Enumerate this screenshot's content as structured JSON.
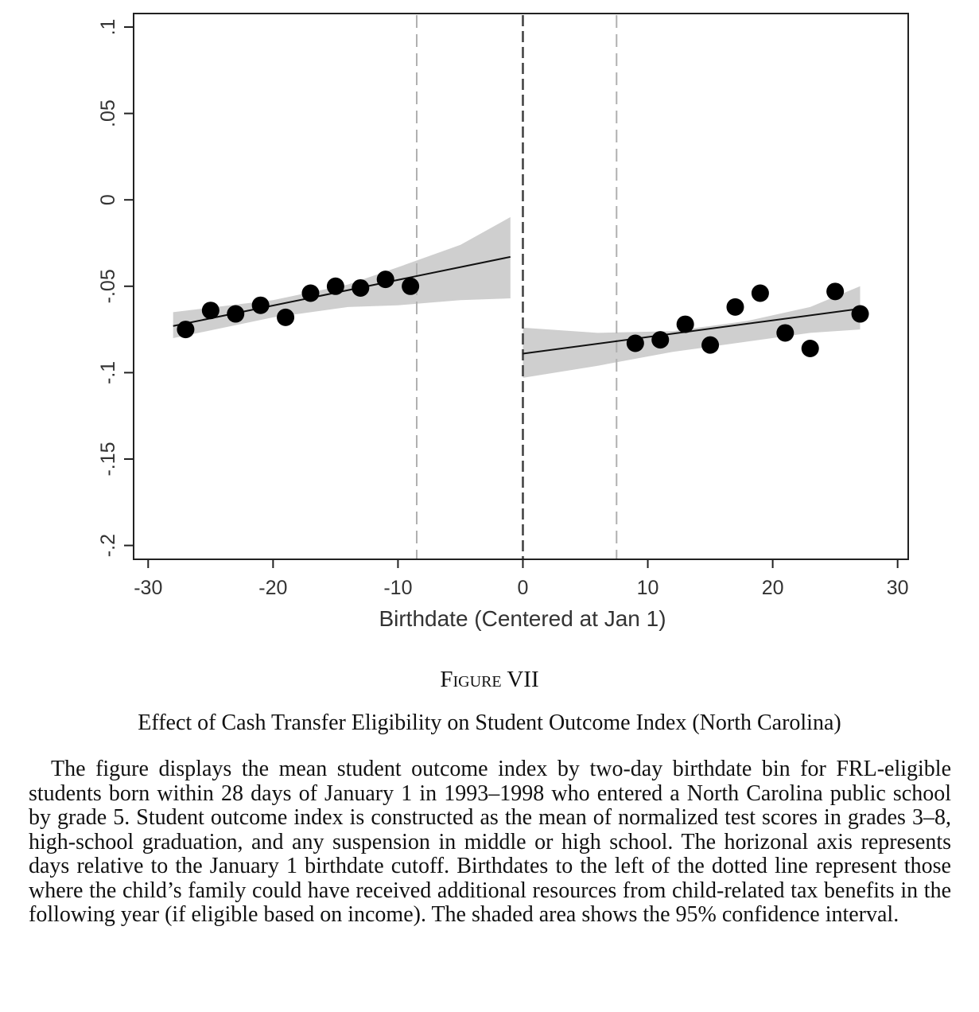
{
  "figure": {
    "label": "Figure VII",
    "title": "Effect of Cash Transfer Eligibility on Student Outcome Index (North Carolina)",
    "caption": "The figure displays the mean student outcome index by two-day birthdate bin for FRL-eligible students born within 28 days of January 1 in 1993–1998 who entered a North Carolina public school by grade 5. Student outcome index is constructed as the mean of normalized test scores in grades 3–8, high-school graduation, and any suspension in middle or high school. The horizonal axis represents days relative to the January 1 birthdate cutoff. Birthdates to the left of the dotted line represent those where the child’s family could have received additional resources from child-related tax benefits in the following year (if eligible based on income). The shaded area shows the 95% confidence interval."
  },
  "chart_data": {
    "type": "scatter",
    "title": "",
    "xlabel": "Birthdate (Centered at Jan 1)",
    "ylabel": "",
    "xlim": [
      -31,
      31
    ],
    "ylim": [
      -0.205,
      0.105
    ],
    "x_ticks": [
      -30,
      -20,
      -10,
      0,
      10,
      20,
      30
    ],
    "x_tick_labels": [
      "-30",
      "-20",
      "-10",
      "0",
      "10",
      "20",
      "30"
    ],
    "y_ticks": [
      0.1,
      0.05,
      0,
      -0.05,
      -0.1,
      -0.15,
      -0.2
    ],
    "y_tick_labels": [
      ".1",
      ".05",
      "0",
      "-.05",
      "-.1",
      "-.15",
      "-.2"
    ],
    "grid": false,
    "vertical_lines": [
      {
        "x": -8.5,
        "style": "dashed",
        "color": "#b0b0b0"
      },
      {
        "x": 0,
        "style": "dashed",
        "color": "#444444"
      },
      {
        "x": 7.5,
        "style": "dashed",
        "color": "#b0b0b0"
      }
    ],
    "series": [
      {
        "side": "left",
        "points": [
          {
            "x": -27,
            "y": -0.075
          },
          {
            "x": -25,
            "y": -0.064
          },
          {
            "x": -23,
            "y": -0.066
          },
          {
            "x": -21,
            "y": -0.061
          },
          {
            "x": -19,
            "y": -0.068
          },
          {
            "x": -17,
            "y": -0.054
          },
          {
            "x": -15,
            "y": -0.05
          },
          {
            "x": -13,
            "y": -0.051
          },
          {
            "x": -11,
            "y": -0.046
          },
          {
            "x": -9,
            "y": -0.05
          }
        ],
        "fit": {
          "x": [
            -28,
            -1
          ],
          "y": [
            -0.073,
            -0.033
          ]
        },
        "ci_upper": [
          [
            -28,
            -0.065
          ],
          [
            -20,
            -0.058
          ],
          [
            -14,
            -0.049
          ],
          [
            -10,
            -0.039
          ],
          [
            -5,
            -0.026
          ],
          [
            -1,
            -0.01
          ]
        ],
        "ci_lower": [
          [
            -28,
            -0.08
          ],
          [
            -20,
            -0.068
          ],
          [
            -14,
            -0.062
          ],
          [
            -10,
            -0.061
          ],
          [
            -5,
            -0.058
          ],
          [
            -1,
            -0.057
          ]
        ]
      },
      {
        "side": "right",
        "points": [
          {
            "x": 9,
            "y": -0.083
          },
          {
            "x": 11,
            "y": -0.081
          },
          {
            "x": 13,
            "y": -0.072
          },
          {
            "x": 15,
            "y": -0.084
          },
          {
            "x": 17,
            "y": -0.062
          },
          {
            "x": 19,
            "y": -0.054
          },
          {
            "x": 21,
            "y": -0.077
          },
          {
            "x": 23,
            "y": -0.086
          },
          {
            "x": 25,
            "y": -0.053
          },
          {
            "x": 27,
            "y": -0.066
          }
        ],
        "fit": {
          "x": [
            0,
            27
          ],
          "y": [
            -0.089,
            -0.063
          ]
        },
        "ci_upper": [
          [
            0,
            -0.074
          ],
          [
            6,
            -0.077
          ],
          [
            12,
            -0.076
          ],
          [
            18,
            -0.07
          ],
          [
            23,
            -0.062
          ],
          [
            27,
            -0.05
          ]
        ],
        "ci_lower": [
          [
            0,
            -0.103
          ],
          [
            6,
            -0.096
          ],
          [
            12,
            -0.088
          ],
          [
            18,
            -0.082
          ],
          [
            23,
            -0.077
          ],
          [
            27,
            -0.075
          ]
        ]
      }
    ]
  }
}
